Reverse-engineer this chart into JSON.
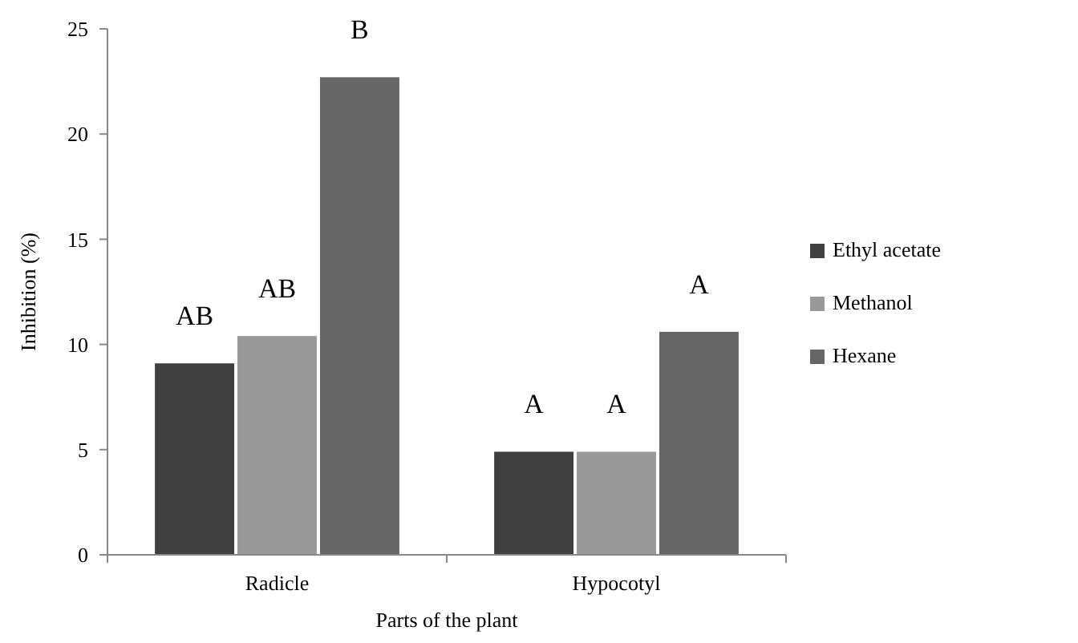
{
  "chart_data": {
    "type": "bar",
    "xlabel": "Parts of the plant",
    "ylabel": "Inhibition (%)",
    "categories": [
      "Radicle",
      "Hypocotyl"
    ],
    "series": [
      {
        "name": "Ethyl acetate",
        "color": "#404040",
        "values": [
          9.1,
          4.9
        ]
      },
      {
        "name": "Methanol",
        "color": "#999999",
        "values": [
          10.4,
          4.9
        ]
      },
      {
        "name": "Hexane",
        "color": "#666666",
        "values": [
          22.7,
          10.6
        ]
      }
    ],
    "ylim": [
      0,
      25
    ],
    "yticks": [
      0,
      5,
      10,
      15,
      20,
      25
    ],
    "legend": "right",
    "grid": false,
    "annotations": [
      "AB",
      "AB",
      "B",
      "A",
      "A",
      "A"
    ]
  }
}
